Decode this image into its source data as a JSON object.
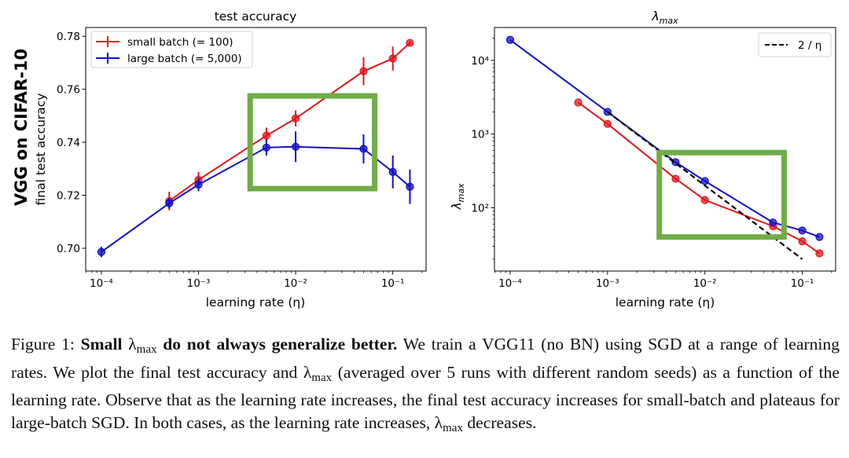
{
  "figure": {
    "row_label": "VGG on CIFAR-10",
    "caption": {
      "label": "Figure 1:",
      "bold_pre": "Small",
      "lambda": "λ",
      "lambda_sub": "max",
      "bold_post": "do not always generalize better.",
      "line1_rest": "We train a VGG11 (no BN) using SGD at a range of learning rates. We plot the final test accuracy and",
      "line2_rest": "(averaged over 5 runs with different random seeds) as a function of the learning rate. Observe that as the learning rate increases, the final test accuracy increases for small-batch and plateaus for large-batch SGD. In both cases, as the learning rate increases,",
      "end": "decreases."
    },
    "highlight_color": "#70ad47"
  },
  "chart_data": [
    {
      "type": "line",
      "title": "test accuracy",
      "xlabel": "learning rate (η)",
      "ylabel": "final test accuracy",
      "xscale": "log",
      "xlim": [
        6.9e-05,
        0.22
      ],
      "ylim": [
        0.6914,
        0.7833
      ],
      "xticks": [
        {
          "value": 0.0001,
          "label": "10⁻⁴"
        },
        {
          "value": 0.001,
          "label": "10⁻³"
        },
        {
          "value": 0.01,
          "label": "10⁻²"
        },
        {
          "value": 0.1,
          "label": "10⁻¹"
        }
      ],
      "yticks": [
        {
          "value": 0.7,
          "label": "0.70"
        },
        {
          "value": 0.72,
          "label": "0.72"
        },
        {
          "value": 0.74,
          "label": "0.74"
        },
        {
          "value": 0.76,
          "label": "0.76"
        },
        {
          "value": 0.78,
          "label": "0.78"
        }
      ],
      "legend": {
        "position": "top-left"
      },
      "series": [
        {
          "name": "small batch (= 100)",
          "color": "#e3171b",
          "x": [
            0.0005,
            0.001,
            0.005,
            0.01,
            0.05,
            0.1,
            0.15
          ],
          "y": [
            0.7178,
            0.7258,
            0.7425,
            0.749,
            0.7668,
            0.7716,
            0.7775
          ],
          "err": [
            0.0035,
            0.003,
            0.003,
            0.003,
            0.0053,
            0.0045,
            0.0008
          ]
        },
        {
          "name": "large batch (= 5,000)",
          "color": "#1010c8",
          "x": [
            0.0001,
            0.0005,
            0.001,
            0.005,
            0.01,
            0.05,
            0.1,
            0.15
          ],
          "y": [
            0.6986,
            0.717,
            0.724,
            0.738,
            0.7383,
            0.7375,
            0.7288,
            0.7232
          ],
          "err": [
            0.002,
            0.002,
            0.0025,
            0.003,
            0.0058,
            0.0055,
            0.0062,
            0.0065
          ]
        }
      ],
      "highlight_box": {
        "x": [
          0.0034,
          0.065
        ],
        "y": [
          0.7225,
          0.7575
        ]
      }
    },
    {
      "type": "line",
      "title": "λmax",
      "title_base": "λ",
      "title_sub": "max",
      "xlabel": "learning rate (η)",
      "ylabel": "λmax",
      "xscale": "log",
      "yscale": "log",
      "xlim": [
        6.9e-05,
        0.22
      ],
      "ylim": [
        13.8,
        28000
      ],
      "xticks": [
        {
          "value": 0.0001,
          "label": "10⁻⁴"
        },
        {
          "value": 0.001,
          "label": "10⁻³"
        },
        {
          "value": 0.01,
          "label": "10⁻²"
        },
        {
          "value": 0.1,
          "label": "10⁻¹"
        }
      ],
      "yticks": [
        {
          "value": 100,
          "label": "10²"
        },
        {
          "value": 1000,
          "label": "10³"
        },
        {
          "value": 10000,
          "label": "10⁴"
        }
      ],
      "legend": {
        "position": "top-right",
        "entries": [
          "2 / η"
        ]
      },
      "series": [
        {
          "name": "small batch (= 100)",
          "color": "#e3171b",
          "x": [
            0.0005,
            0.001,
            0.005,
            0.01,
            0.05,
            0.1,
            0.15
          ],
          "y": [
            2680,
            1375,
            247,
            127,
            56,
            35,
            24
          ]
        },
        {
          "name": "large batch (= 5,000)",
          "color": "#1010c8",
          "x": [
            0.0001,
            0.001,
            0.005,
            0.01,
            0.05,
            0.1,
            0.15
          ],
          "y": [
            19000,
            2000,
            415,
            230,
            63,
            49,
            40
          ]
        },
        {
          "name": "2 / η",
          "color": "#000000",
          "style": "dashed",
          "x": [
            0.001,
            0.1
          ],
          "y": [
            2000,
            20
          ]
        }
      ],
      "highlight_box": {
        "x": [
          0.0034,
          0.065
        ],
        "y": [
          40,
          560
        ]
      }
    }
  ]
}
